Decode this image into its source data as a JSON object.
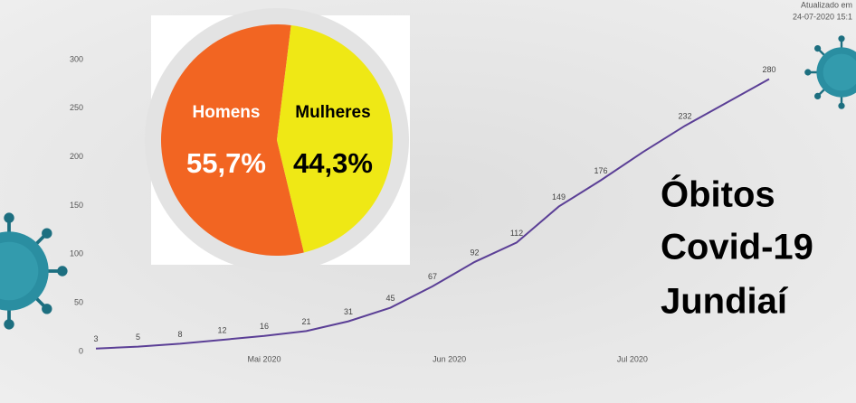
{
  "update": {
    "label": "Atualizado em",
    "timestamp": "24-07-2020 15:1"
  },
  "headline": [
    "Óbitos",
    "Covid-19",
    "Jundiaí"
  ],
  "chart_data": [
    {
      "type": "line",
      "categories": [
        null,
        null,
        null,
        null,
        null,
        null,
        null,
        null,
        null,
        null,
        null,
        null,
        null,
        null,
        null,
        null,
        null
      ],
      "series": [
        {
          "name": null,
          "color": "#5b3f96",
          "values": [
            3,
            5,
            8,
            12,
            16,
            21,
            31,
            45,
            67,
            92,
            112,
            149,
            176,
            205,
            232,
            256,
            280
          ],
          "value_labels": [
            "3",
            "5",
            "8",
            "12",
            "16",
            "21",
            "31",
            "45",
            "67",
            "92",
            "112",
            "149",
            "176",
            null,
            "232",
            null,
            "280"
          ]
        }
      ],
      "xlim": [
        0,
        16
      ],
      "xticks": [
        {
          "value": 4,
          "label": "Mai 2020"
        },
        {
          "value": 8.4,
          "label": "Jun 2020"
        },
        {
          "value": 12.75,
          "label": "Jul 2020"
        }
      ],
      "ylim": [
        0,
        300
      ],
      "yticks": [
        0,
        50,
        100,
        150,
        200,
        250,
        300
      ],
      "grid": false
    },
    {
      "type": "pie",
      "categories": [
        "Homens",
        "Mulheres"
      ],
      "values": [
        55.7,
        44.3
      ],
      "value_labels": [
        "55,7%",
        "44,3%"
      ],
      "colors": [
        "#f26522",
        "#efe815"
      ]
    }
  ]
}
